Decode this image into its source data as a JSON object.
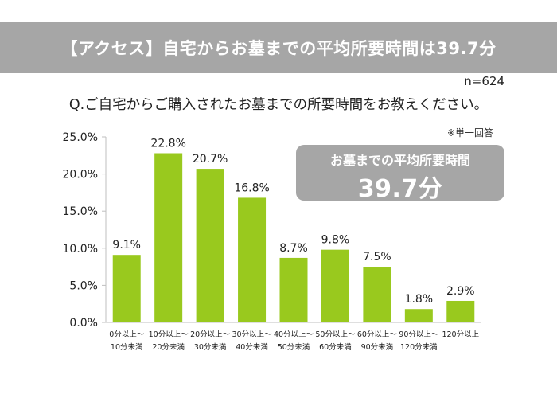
{
  "banner": {
    "title": "【アクセス】自宅からお墓までの平均所要時間は39.7分"
  },
  "sample": "n=624",
  "question": "Q.ご自宅からご購入されたお墓までの所要時間をお教えください。",
  "note": "※単一回答",
  "average": {
    "label": "お墓までの平均所要時間",
    "value": "39.7分"
  },
  "colors": {
    "bar": "#99c91e",
    "banner": "#a6a6a6",
    "axis": "#bfbfbf"
  },
  "chart_data": {
    "type": "bar",
    "title": "",
    "xlabel": "",
    "ylabel": "",
    "ylim": [
      0,
      25
    ],
    "y_ticks": [
      "0.0%",
      "5.0%",
      "10.0%",
      "15.0%",
      "20.0%",
      "25.0%"
    ],
    "categories": [
      [
        "0分以上～",
        "10分未満"
      ],
      [
        "10分以上～",
        "20分未満"
      ],
      [
        "20分以上～",
        "30分未満"
      ],
      [
        "30分以上～",
        "40分未満"
      ],
      [
        "40分以上～",
        "50分未満"
      ],
      [
        "50分以上～",
        "60分未満"
      ],
      [
        "60分以上～",
        "90分未満"
      ],
      [
        "90分以上～",
        "120分未満"
      ],
      [
        "120分以上"
      ]
    ],
    "values": [
      9.1,
      22.8,
      20.7,
      16.8,
      8.7,
      9.8,
      7.5,
      1.8,
      2.9
    ],
    "value_labels": [
      "9.1%",
      "22.8%",
      "20.7%",
      "16.8%",
      "8.7%",
      "9.8%",
      "7.5%",
      "1.8%",
      "2.9%"
    ]
  }
}
